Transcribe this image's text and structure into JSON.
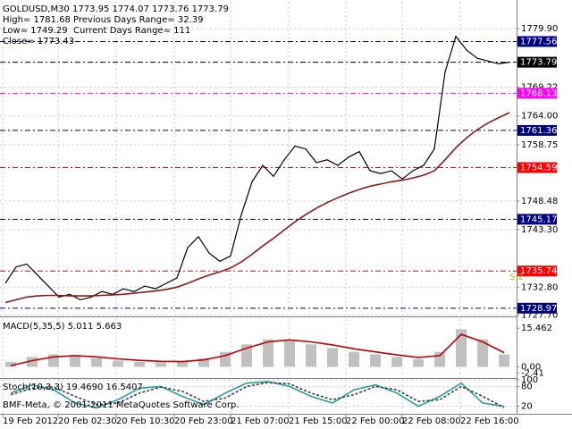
{
  "chart_data": [
    {
      "type": "line",
      "title": "GOLDUSD,M30  1773.95 1774.07 1773.76 1773.79",
      "info": [
        "High= 1781.68",
        "Previous Days Range= 32.39",
        "Low= 1749.29",
        "Current Days Range= 111",
        "Close= 1773.43"
      ],
      "annotations": [
        "S 2"
      ],
      "xlim": [
        -0.5,
        47.67
      ],
      "xticks": [
        {
          "value": -0.25,
          "label": "19 Feb 2012"
        },
        {
          "value": 4.92,
          "label": "20 Feb 02:30"
        },
        {
          "value": 10.33,
          "label": "20 Feb 10:30"
        },
        {
          "value": 15.75,
          "label": "20 Feb 23:00"
        },
        {
          "value": 21,
          "label": "21 Feb 07:00"
        },
        {
          "value": 26.42,
          "label": "21 Feb 15:00"
        },
        {
          "value": 31.75,
          "label": "22 Feb 00:00"
        },
        {
          "value": 37,
          "label": "22 Feb 08:00"
        },
        {
          "value": 42.42,
          "label": "22 Feb 16:00"
        }
      ],
      "ylim": [
        1727.8,
        1784.8
      ],
      "yticks": [
        {
          "value": 1779.9,
          "label": "1779.90"
        },
        {
          "value": 1769.22,
          "label": "1769.22"
        },
        {
          "value": 1764,
          "label": "1764.00"
        },
        {
          "value": 1758.75,
          "label": "1758.75"
        },
        {
          "value": 1748.48,
          "label": "1748.48"
        },
        {
          "value": 1743.3,
          "label": "1743.30"
        },
        {
          "value": 1732.8,
          "label": "1732.80"
        },
        {
          "value": 1727.7,
          "label": "1727.70"
        }
      ],
      "levels": [
        {
          "value": 1777.56,
          "color": "#000080",
          "text_color": "#ffffff"
        },
        {
          "value": 1773.79,
          "color": "#000000",
          "text_color": "#ffffff"
        },
        {
          "value": 1768.13,
          "color": "#ff00ff",
          "text_color": "#ffffff"
        },
        {
          "value": 1761.36,
          "color": "#000080",
          "text_color": "#ffffff"
        },
        {
          "value": 1754.59,
          "color": "#ff0000",
          "text_color": "#ffffff"
        },
        {
          "value": 1745.17,
          "color": "#000080",
          "text_color": "#ffffff"
        },
        {
          "value": 1735.74,
          "color": "#ff0000",
          "text_color": "#ffffff"
        },
        {
          "value": 1728.97,
          "color": "#000080",
          "text_color": "#ffffff"
        }
      ],
      "grid": true,
      "series": [
        {
          "name": "Close",
          "type": "line",
          "color": "#000000",
          "values": [
            1733.5,
            1736.5,
            1737,
            1735,
            1733,
            1731,
            1731.5,
            1730.5,
            1731,
            1732,
            1731.5,
            1732.5,
            1732,
            1733,
            1732.5,
            1733.5,
            1734.5,
            1740,
            1742,
            1739,
            1737.5,
            1738.5,
            1746,
            1752,
            1755,
            1753,
            1756,
            1758.5,
            1758,
            1755.5,
            1756,
            1755,
            1756.5,
            1757.5,
            1754,
            1753.5,
            1754,
            1752.5,
            1754,
            1755,
            1758,
            1772,
            1778.5,
            1776,
            1774.5,
            1774,
            1773.5,
            1773.79
          ]
        },
        {
          "name": "MA",
          "type": "line",
          "color": "#8b1a1a",
          "values": [
            1730,
            1730.5,
            1731,
            1731.2,
            1731.3,
            1731.3,
            1731.2,
            1731.2,
            1731.2,
            1731.3,
            1731.4,
            1731.5,
            1731.7,
            1731.9,
            1732.1,
            1732.4,
            1732.8,
            1733.5,
            1734.3,
            1735,
            1735.6,
            1736.3,
            1737.4,
            1738.8,
            1740.3,
            1741.7,
            1743.2,
            1744.7,
            1746,
            1747.2,
            1748.2,
            1749.1,
            1749.9,
            1750.6,
            1751.2,
            1751.6,
            1752,
            1752.3,
            1752.7,
            1753.2,
            1754,
            1756,
            1758.2,
            1760,
            1761.5,
            1762.7,
            1763.7,
            1764.6
          ]
        }
      ]
    },
    {
      "type": "line",
      "title": "MACD(5,35,5) 5.011 5.663",
      "xlim": [
        -0.5,
        23.58
      ],
      "ylim": [
        -4.1,
        19.1
      ],
      "yticks": [
        15.462,
        {
          "value": 0,
          "label": "0.00"
        },
        -2.41
      ],
      "grid": false,
      "series": [
        {
          "name": "MACD",
          "type": "bar",
          "color": "#c0c0c0",
          "values": [
            2,
            4,
            5,
            4.5,
            3.5,
            2.5,
            2,
            1.8,
            2,
            3.5,
            6,
            9,
            11,
            10.5,
            9,
            7.5,
            6,
            5,
            4,
            3,
            6,
            15,
            11,
            5.011
          ]
        },
        {
          "name": "Signal",
          "type": "line",
          "color": "#c00000",
          "values": [
            0.5,
            2.5,
            4,
            4.5,
            4,
            3.2,
            2.6,
            2.2,
            2.1,
            2.8,
            4.5,
            7.5,
            10,
            10.8,
            10,
            8.8,
            7.2,
            6,
            4.8,
            3.8,
            4.5,
            13,
            10,
            5.663
          ]
        }
      ]
    },
    {
      "type": "line",
      "title": "Stoch(10,3,3) 19.4690 16.5407",
      "footer": "BMF-Meta, © 2001-2011 MetaQuotes Software Corp.",
      "xlim": [
        -0.5,
        23.58
      ],
      "ylim": [
        0,
        100
      ],
      "yticks": [
        100,
        80,
        20
      ],
      "grid": true,
      "series": [
        {
          "name": "Main",
          "type": "line",
          "color": "#20a0a0",
          "values": [
            60,
            85,
            70,
            30,
            15,
            40,
            75,
            80,
            50,
            25,
            60,
            90,
            95,
            80,
            50,
            30,
            70,
            85,
            60,
            20,
            50,
            90,
            30,
            19.469
          ]
        },
        {
          "name": "Signal",
          "type": "line",
          "color": "#404040",
          "dash": true,
          "values": [
            55,
            75,
            78,
            50,
            25,
            30,
            60,
            78,
            65,
            35,
            45,
            80,
            92,
            88,
            60,
            40,
            55,
            80,
            70,
            35,
            40,
            80,
            50,
            16.5407
          ]
        }
      ]
    }
  ]
}
